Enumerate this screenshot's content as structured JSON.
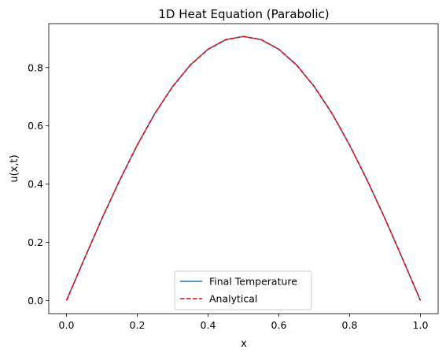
{
  "chart_data": {
    "type": "line",
    "title": "1D Heat Equation (Parabolic)",
    "xlabel": "x",
    "ylabel": "u(x,t)",
    "xlim": [
      -0.05,
      1.05
    ],
    "ylim": [
      -0.045,
      0.951
    ],
    "xticks": [
      0.0,
      0.2,
      0.4,
      0.6,
      0.8,
      1.0
    ],
    "xtick_labels": [
      "0.0",
      "0.2",
      "0.4",
      "0.6",
      "0.8",
      "1.0"
    ],
    "yticks": [
      0.0,
      0.2,
      0.4,
      0.6,
      0.8
    ],
    "ytick_labels": [
      "0.0",
      "0.2",
      "0.4",
      "0.6",
      "0.8"
    ],
    "grid": false,
    "legend_position": "lower center",
    "series": [
      {
        "name": "Final Temperature",
        "color": "#1f77b4",
        "style": "solid",
        "x": [
          0.0,
          0.05,
          0.1,
          0.15,
          0.2,
          0.25,
          0.3,
          0.35,
          0.4,
          0.45,
          0.5,
          0.55,
          0.6,
          0.65,
          0.7,
          0.75,
          0.8,
          0.85,
          0.9,
          0.95,
          1.0
        ],
        "y": [
          0.0,
          0.142,
          0.281,
          0.412,
          0.534,
          0.643,
          0.735,
          0.809,
          0.863,
          0.896,
          0.907,
          0.896,
          0.863,
          0.809,
          0.735,
          0.643,
          0.534,
          0.412,
          0.281,
          0.142,
          0.0
        ]
      },
      {
        "name": "Analytical",
        "color": "#ff0000",
        "style": "dashed",
        "x": [
          0.0,
          0.05,
          0.1,
          0.15,
          0.2,
          0.25,
          0.3,
          0.35,
          0.4,
          0.45,
          0.5,
          0.55,
          0.6,
          0.65,
          0.7,
          0.75,
          0.8,
          0.85,
          0.9,
          0.95,
          1.0
        ],
        "y": [
          0.0,
          0.142,
          0.281,
          0.412,
          0.534,
          0.643,
          0.735,
          0.809,
          0.863,
          0.896,
          0.907,
          0.896,
          0.863,
          0.809,
          0.735,
          0.643,
          0.534,
          0.412,
          0.281,
          0.142,
          0.0
        ]
      }
    ]
  }
}
